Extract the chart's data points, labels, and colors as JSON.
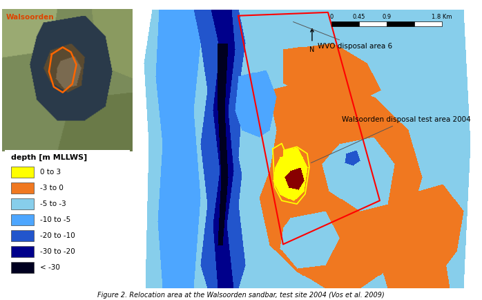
{
  "title": "Figure 2. Relocation area at the Walsoorden sandbar, test site 2004 (Vos et al. 2009)",
  "legend_title": "depth [m MLLWS]",
  "legend_items": [
    {
      "label": "0 to 3",
      "color": "#FFFF00"
    },
    {
      "label": "-3 to 0",
      "color": "#F07820"
    },
    {
      "label": "-5 to -3",
      "color": "#87CEEB"
    },
    {
      "label": "-10 to -5",
      "color": "#4DA6FF"
    },
    {
      "label": "-20 to -10",
      "color": "#2255CC"
    },
    {
      "label": "-30 to -20",
      "color": "#00008B"
    },
    {
      "label": "< -30",
      "color": "#000020"
    }
  ],
  "c_yellow": "#FFFF00",
  "c_orange": "#F07820",
  "c_lblue": "#87CEEB",
  "c_mblue": "#4DA6FF",
  "c_dblue": "#2255CC",
  "c_vdblue": "#00008B",
  "c_deepest": "#000020",
  "c_white": "#FFFFFF",
  "c_darkred": "#660000",
  "fig_width": 6.98,
  "fig_height": 4.34,
  "background_color": "#FFFFFF"
}
